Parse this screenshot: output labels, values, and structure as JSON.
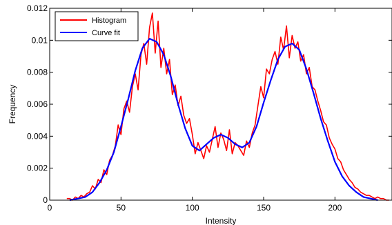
{
  "chart_data": {
    "type": "line",
    "title": "",
    "xlabel": "Intensity",
    "ylabel": "Frequency",
    "xlim": [
      0,
      240
    ],
    "ylim": [
      0,
      0.012
    ],
    "xticks": [
      0,
      50,
      100,
      150,
      200
    ],
    "xtick_labels": [
      "0",
      "50",
      "100",
      "150",
      "200"
    ],
    "yticks": [
      0,
      0.002,
      0.004,
      0.006,
      0.008,
      0.01,
      0.012
    ],
    "ytick_labels": [
      "0",
      "0.002",
      "0.004",
      "0.006",
      "0.008",
      "0.01",
      "0.012"
    ],
    "grid": false,
    "legend_position": "top-left",
    "series": [
      {
        "name": "Histogram",
        "color": "#ff0000",
        "x": [
          12,
          14,
          16,
          18,
          20,
          22,
          24,
          26,
          28,
          30,
          32,
          34,
          36,
          38,
          40,
          42,
          44,
          46,
          48,
          50,
          52,
          54,
          56,
          58,
          60,
          62,
          64,
          66,
          68,
          70,
          72,
          74,
          76,
          78,
          80,
          82,
          84,
          86,
          88,
          90,
          92,
          94,
          96,
          98,
          100,
          102,
          104,
          106,
          108,
          110,
          112,
          114,
          116,
          118,
          120,
          122,
          124,
          126,
          128,
          130,
          132,
          134,
          136,
          138,
          140,
          142,
          144,
          146,
          148,
          150,
          152,
          154,
          156,
          158,
          160,
          162,
          164,
          166,
          168,
          170,
          172,
          174,
          176,
          178,
          180,
          182,
          184,
          186,
          188,
          190,
          192,
          194,
          196,
          198,
          200,
          202,
          204,
          206,
          208,
          210,
          212,
          214,
          216,
          218,
          220,
          222,
          224,
          226,
          228,
          230,
          232,
          234,
          236,
          238
        ],
        "y": [
          0.0001,
          0.0001,
          0.0,
          0.0002,
          0.0001,
          0.0003,
          0.0002,
          0.0004,
          0.0005,
          0.0009,
          0.0007,
          0.0013,
          0.0011,
          0.0019,
          0.0016,
          0.0025,
          0.0028,
          0.0034,
          0.0047,
          0.0041,
          0.0057,
          0.0062,
          0.0055,
          0.0071,
          0.0079,
          0.0069,
          0.0091,
          0.0098,
          0.0085,
          0.0108,
          0.0117,
          0.0092,
          0.0112,
          0.0083,
          0.0095,
          0.0079,
          0.0088,
          0.0066,
          0.0072,
          0.0059,
          0.0065,
          0.0053,
          0.0048,
          0.0051,
          0.0041,
          0.0029,
          0.0036,
          0.0031,
          0.0026,
          0.0034,
          0.003,
          0.0038,
          0.0046,
          0.0033,
          0.0042,
          0.0038,
          0.0031,
          0.0044,
          0.0029,
          0.0036,
          0.0034,
          0.0031,
          0.0028,
          0.0037,
          0.0033,
          0.0042,
          0.0047,
          0.0059,
          0.0071,
          0.0064,
          0.0082,
          0.0079,
          0.0088,
          0.0093,
          0.0085,
          0.0102,
          0.0094,
          0.0109,
          0.0089,
          0.0103,
          0.0095,
          0.0099,
          0.0087,
          0.0091,
          0.0079,
          0.0083,
          0.0071,
          0.0069,
          0.0062,
          0.0056,
          0.0049,
          0.0047,
          0.0039,
          0.0035,
          0.0032,
          0.0026,
          0.0024,
          0.0019,
          0.0016,
          0.0013,
          0.0011,
          0.0008,
          0.0007,
          0.0005,
          0.0004,
          0.0003,
          0.0003,
          0.0002,
          0.0001,
          0.0002,
          0.0001,
          0.0001,
          0.0,
          0.0
        ]
      },
      {
        "name": "Curve fit",
        "color": "#0000ff",
        "x": [
          14,
          20,
          25,
          30,
          35,
          40,
          45,
          50,
          55,
          60,
          65,
          70,
          75,
          80,
          85,
          90,
          95,
          100,
          105,
          110,
          115,
          120,
          125,
          130,
          135,
          140,
          145,
          150,
          155,
          160,
          165,
          170,
          175,
          180,
          185,
          190,
          195,
          200,
          205,
          210,
          215,
          220,
          225,
          230
        ],
        "y": [
          0.0,
          0.0001,
          0.0002,
          0.0005,
          0.0011,
          0.0019,
          0.003,
          0.0046,
          0.0063,
          0.0081,
          0.0095,
          0.0101,
          0.0099,
          0.0091,
          0.0077,
          0.006,
          0.0045,
          0.0034,
          0.0031,
          0.0035,
          0.0039,
          0.0041,
          0.0039,
          0.0035,
          0.0033,
          0.0036,
          0.0046,
          0.0061,
          0.0075,
          0.0088,
          0.0096,
          0.0098,
          0.0094,
          0.0082,
          0.0067,
          0.0051,
          0.0037,
          0.0024,
          0.0015,
          0.0009,
          0.0005,
          0.0002,
          0.0001,
          0.0
        ]
      }
    ]
  }
}
